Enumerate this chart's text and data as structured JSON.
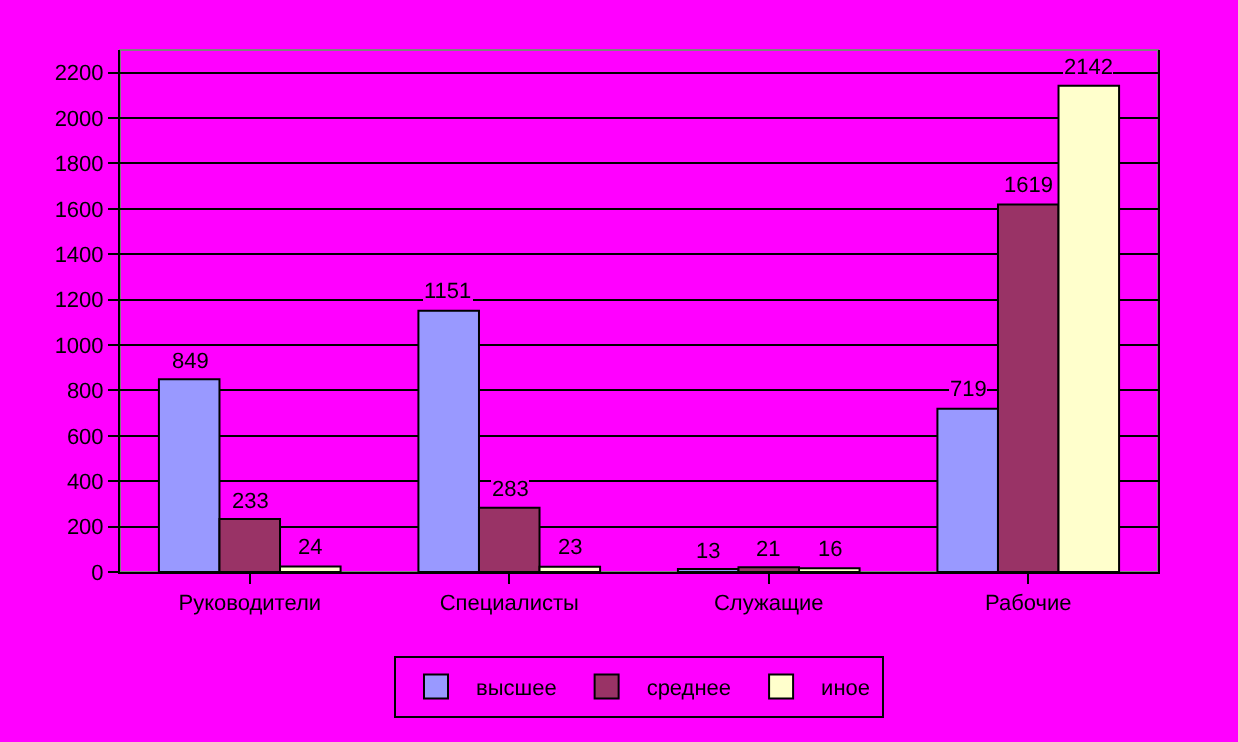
{
  "chart_data": {
    "type": "bar",
    "categories": [
      "Руководители",
      "Специалисты",
      "Служащие",
      "Рабочие"
    ],
    "series": [
      {
        "name": "высшее",
        "color": "#9999ff",
        "values": [
          849,
          1151,
          13,
          719
        ]
      },
      {
        "name": "среднее",
        "color": "#993366",
        "values": [
          233,
          283,
          21,
          1619
        ]
      },
      {
        "name": "иное",
        "color": "#ffffcc",
        "values": [
          24,
          23,
          16,
          2142
        ]
      }
    ],
    "ylim": [
      0,
      2300
    ],
    "yticks": [
      0,
      200,
      400,
      600,
      800,
      1000,
      1200,
      1400,
      1600,
      1800,
      2000,
      2200
    ],
    "grid": "y",
    "legend": "bottom",
    "data_labels": true
  }
}
